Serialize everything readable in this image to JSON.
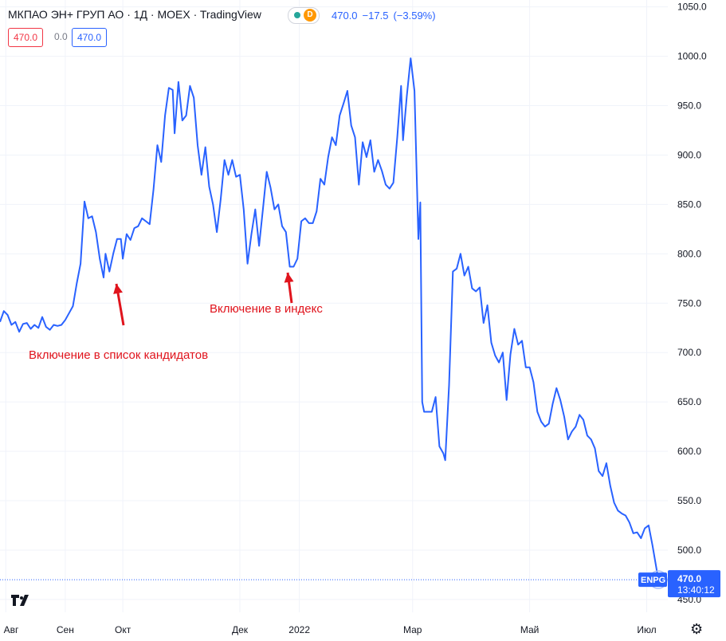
{
  "header": {
    "title": "МКПАО ЭН+ ГРУП АО · 1Д · MOEX · TradingView",
    "badge_letter": "D",
    "last_price": "470.0",
    "change": "−17.5",
    "change_pct": "(−3.59%)"
  },
  "ohlc_boxes": [
    "470.0",
    "0.0",
    "470.0"
  ],
  "price_tag": {
    "ticker": "ENPG",
    "price": "470.0",
    "time": "13:40:12"
  },
  "annotations": {
    "candidates": "Включение в список кандидатов",
    "index": "Включение в индекс"
  },
  "colors": {
    "line": "#2962ff",
    "arrow": "#e0141d",
    "grid": "#f0f3fa",
    "tag": "#2962ff"
  },
  "chart_data": {
    "type": "line",
    "title": "",
    "xlabel": "",
    "ylabel": "",
    "ylim": [
      437,
      1057
    ],
    "yticks": [
      450,
      500,
      550,
      600,
      650,
      700,
      750,
      800,
      850,
      900,
      950,
      1000,
      1050
    ],
    "ytick_labels": [
      "450.0",
      "500.0",
      "550.0",
      "600.0",
      "650.0",
      "700.0",
      "750.0",
      "800.0",
      "850.0",
      "900.0",
      "950.0",
      "1000.0",
      "1050.0"
    ],
    "x_axis_labels": [
      {
        "label": "Авг",
        "date": "2021-08-01"
      },
      {
        "label": "Сен",
        "date": "2021-09-01"
      },
      {
        "label": "Окт",
        "date": "2021-10-01"
      },
      {
        "label": "Дек",
        "date": "2021-12-01"
      },
      {
        "label": "2022",
        "date": "2022-01-01"
      },
      {
        "label": "Мар",
        "date": "2022-03-01"
      },
      {
        "label": "Май",
        "date": "2022-05-01"
      },
      {
        "label": "Июл",
        "date": "2022-07-01"
      }
    ],
    "x_range": [
      "2021-07-29",
      "2022-07-12"
    ],
    "series": [
      {
        "values": [
          [
            "2021-07-29",
            731
          ],
          [
            "2021-07-31",
            742
          ],
          [
            "2021-08-02",
            738
          ],
          [
            "2021-08-04",
            728
          ],
          [
            "2021-08-06",
            731
          ],
          [
            "2021-08-08",
            721
          ],
          [
            "2021-08-10",
            729
          ],
          [
            "2021-08-12",
            730
          ],
          [
            "2021-08-14",
            724
          ],
          [
            "2021-08-16",
            728
          ],
          [
            "2021-08-18",
            725
          ],
          [
            "2021-08-20",
            736
          ],
          [
            "2021-08-22",
            726
          ],
          [
            "2021-08-24",
            723
          ],
          [
            "2021-08-26",
            728
          ],
          [
            "2021-08-28",
            727
          ],
          [
            "2021-08-30",
            728
          ],
          [
            "2021-09-01",
            733
          ],
          [
            "2021-09-03",
            740
          ],
          [
            "2021-09-05",
            747
          ],
          [
            "2021-09-07",
            770
          ],
          [
            "2021-09-09",
            790
          ],
          [
            "2021-09-11",
            853
          ],
          [
            "2021-09-13",
            836
          ],
          [
            "2021-09-15",
            838
          ],
          [
            "2021-09-17",
            822
          ],
          [
            "2021-09-19",
            795
          ],
          [
            "2021-09-21",
            776
          ],
          [
            "2021-09-22",
            800
          ],
          [
            "2021-09-24",
            782
          ],
          [
            "2021-09-26",
            800
          ],
          [
            "2021-09-28",
            815
          ],
          [
            "2021-09-30",
            815
          ],
          [
            "2021-10-01",
            795
          ],
          [
            "2021-10-03",
            820
          ],
          [
            "2021-10-05",
            814
          ],
          [
            "2021-10-07",
            826
          ],
          [
            "2021-10-09",
            828
          ],
          [
            "2021-10-11",
            836
          ],
          [
            "2021-10-13",
            833
          ],
          [
            "2021-10-15",
            830
          ],
          [
            "2021-10-17",
            865
          ],
          [
            "2021-10-19",
            910
          ],
          [
            "2021-10-21",
            893
          ],
          [
            "2021-10-23",
            940
          ],
          [
            "2021-10-25",
            968
          ],
          [
            "2021-10-27",
            966
          ],
          [
            "2021-10-28",
            922
          ],
          [
            "2021-10-30",
            974
          ],
          [
            "2021-11-01",
            935
          ],
          [
            "2021-11-03",
            940
          ],
          [
            "2021-11-05",
            970
          ],
          [
            "2021-11-07",
            958
          ],
          [
            "2021-11-09",
            910
          ],
          [
            "2021-11-11",
            880
          ],
          [
            "2021-11-13",
            908
          ],
          [
            "2021-11-15",
            868
          ],
          [
            "2021-11-17",
            850
          ],
          [
            "2021-11-19",
            822
          ],
          [
            "2021-11-21",
            855
          ],
          [
            "2021-11-23",
            895
          ],
          [
            "2021-11-25",
            880
          ],
          [
            "2021-11-27",
            895
          ],
          [
            "2021-11-29",
            878
          ],
          [
            "2021-12-01",
            880
          ],
          [
            "2021-12-03",
            845
          ],
          [
            "2021-12-05",
            790
          ],
          [
            "2021-12-07",
            820
          ],
          [
            "2021-12-09",
            845
          ],
          [
            "2021-12-11",
            808
          ],
          [
            "2021-12-13",
            845
          ],
          [
            "2021-12-15",
            883
          ],
          [
            "2021-12-17",
            867
          ],
          [
            "2021-12-19",
            845
          ],
          [
            "2021-12-21",
            850
          ],
          [
            "2021-12-23",
            828
          ],
          [
            "2021-12-25",
            822
          ],
          [
            "2021-12-27",
            787
          ],
          [
            "2021-12-29",
            787
          ],
          [
            "2021-12-31",
            795
          ],
          [
            "2022-01-02",
            833
          ],
          [
            "2022-01-04",
            836
          ],
          [
            "2022-01-06",
            831
          ],
          [
            "2022-01-08",
            831
          ],
          [
            "2022-01-10",
            843
          ],
          [
            "2022-01-12",
            876
          ],
          [
            "2022-01-14",
            870
          ],
          [
            "2022-01-16",
            898
          ],
          [
            "2022-01-18",
            918
          ],
          [
            "2022-01-20",
            910
          ],
          [
            "2022-01-22",
            940
          ],
          [
            "2022-01-24",
            952
          ],
          [
            "2022-01-26",
            965
          ],
          [
            "2022-01-28",
            930
          ],
          [
            "2022-01-30",
            918
          ],
          [
            "2022-02-01",
            870
          ],
          [
            "2022-02-03",
            913
          ],
          [
            "2022-02-05",
            898
          ],
          [
            "2022-02-07",
            915
          ],
          [
            "2022-02-09",
            883
          ],
          [
            "2022-02-11",
            895
          ],
          [
            "2022-02-13",
            884
          ],
          [
            "2022-02-15",
            870
          ],
          [
            "2022-02-17",
            866
          ],
          [
            "2022-02-19",
            872
          ],
          [
            "2022-02-21",
            918
          ],
          [
            "2022-02-23",
            970
          ],
          [
            "2022-02-24",
            915
          ],
          [
            "2022-02-26",
            960
          ],
          [
            "2022-02-28",
            998
          ],
          [
            "2022-03-02",
            965
          ],
          [
            "2022-03-04",
            815
          ],
          [
            "2022-03-05",
            852
          ],
          [
            "2022-03-06",
            650
          ],
          [
            "2022-03-07",
            640
          ],
          [
            "2022-03-09",
            640
          ],
          [
            "2022-03-11",
            640
          ],
          [
            "2022-03-13",
            655
          ],
          [
            "2022-03-15",
            605
          ],
          [
            "2022-03-17",
            598
          ],
          [
            "2022-03-18",
            591
          ],
          [
            "2022-03-20",
            667
          ],
          [
            "2022-03-22",
            782
          ],
          [
            "2022-03-24",
            785
          ],
          [
            "2022-03-26",
            800
          ],
          [
            "2022-03-28",
            778
          ],
          [
            "2022-03-30",
            787
          ],
          [
            "2022-04-01",
            765
          ],
          [
            "2022-04-03",
            762
          ],
          [
            "2022-04-05",
            766
          ],
          [
            "2022-04-07",
            730
          ],
          [
            "2022-04-09",
            748
          ],
          [
            "2022-04-11",
            710
          ],
          [
            "2022-04-13",
            697
          ],
          [
            "2022-04-15",
            690
          ],
          [
            "2022-04-17",
            700
          ],
          [
            "2022-04-19",
            652
          ],
          [
            "2022-04-21",
            698
          ],
          [
            "2022-04-23",
            724
          ],
          [
            "2022-04-25",
            708
          ],
          [
            "2022-04-27",
            712
          ],
          [
            "2022-04-29",
            685
          ],
          [
            "2022-05-01",
            685
          ],
          [
            "2022-05-03",
            670
          ],
          [
            "2022-05-05",
            640
          ],
          [
            "2022-05-07",
            630
          ],
          [
            "2022-05-09",
            625
          ],
          [
            "2022-05-11",
            628
          ],
          [
            "2022-05-13",
            648
          ],
          [
            "2022-05-15",
            664
          ],
          [
            "2022-05-17",
            652
          ],
          [
            "2022-05-19",
            635
          ],
          [
            "2022-05-21",
            612
          ],
          [
            "2022-05-23",
            620
          ],
          [
            "2022-05-25",
            625
          ],
          [
            "2022-05-27",
            637
          ],
          [
            "2022-05-29",
            632
          ],
          [
            "2022-05-31",
            616
          ],
          [
            "2022-06-02",
            612
          ],
          [
            "2022-06-04",
            603
          ],
          [
            "2022-06-06",
            580
          ],
          [
            "2022-06-08",
            575
          ],
          [
            "2022-06-10",
            588
          ],
          [
            "2022-06-12",
            565
          ],
          [
            "2022-06-14",
            548
          ],
          [
            "2022-06-16",
            540
          ],
          [
            "2022-06-18",
            537
          ],
          [
            "2022-06-20",
            535
          ],
          [
            "2022-06-22",
            528
          ],
          [
            "2022-06-24",
            517
          ],
          [
            "2022-06-26",
            518
          ],
          [
            "2022-06-28",
            512
          ],
          [
            "2022-06-30",
            522
          ],
          [
            "2022-07-02",
            525
          ],
          [
            "2022-07-04",
            505
          ],
          [
            "2022-07-06",
            482
          ],
          [
            "2022-07-07",
            470
          ]
        ]
      }
    ],
    "last_value": 470.0,
    "grid": true,
    "y_axis_side": "right"
  }
}
